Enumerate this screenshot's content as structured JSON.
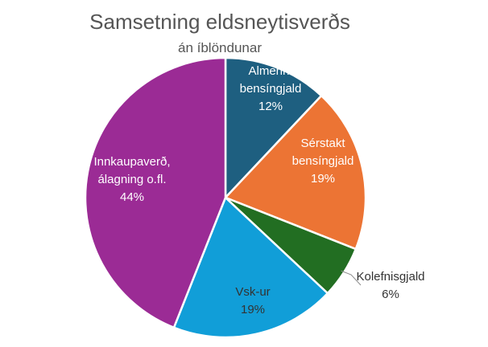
{
  "chart_data": {
    "type": "pie",
    "title": "Samsetning eldsneytisverðs",
    "subtitle": "án íblöndunar",
    "slices": [
      {
        "label": [
          "Almennt",
          "bensíngjald"
        ],
        "value_label": "12%",
        "value": 12,
        "color": "#1e5f80"
      },
      {
        "label": [
          "Sérstakt",
          "bensíngjald"
        ],
        "value_label": "19%",
        "value": 19,
        "color": "#ec7434"
      },
      {
        "label": [
          "Kolefnisgjald"
        ],
        "value_label": "6%",
        "value": 6,
        "color": "#226e22"
      },
      {
        "label": [
          "Vsk-ur"
        ],
        "value_label": "19%",
        "value": 19,
        "color": "#119ed8"
      },
      {
        "label": [
          "Innkaupaverð,",
          "álagning o.fl."
        ],
        "value_label": "44%",
        "value": 44,
        "color": "#9b2b95"
      }
    ]
  }
}
